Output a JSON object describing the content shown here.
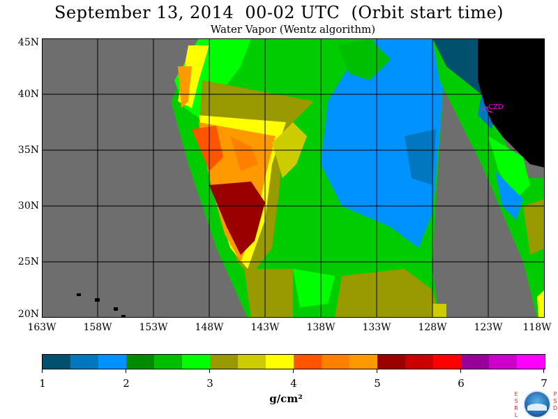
{
  "header": {
    "title": "September 13, 2014  00-02 UTC  (Orbit start time)",
    "subtitle": "Water Vapor (Wentz algorithm)"
  },
  "map": {
    "y_axis_labels": [
      "45N",
      "40N",
      "35N",
      "30N",
      "25N",
      "20N"
    ],
    "x_axis_labels": [
      "163W",
      "158W",
      "153W",
      "148W",
      "143W",
      "138W",
      "133W",
      "128W",
      "123W",
      "118W"
    ],
    "lat_range": [
      20,
      45
    ],
    "lon_range": [
      -163,
      -118
    ],
    "grid": true,
    "annotation": "CZD",
    "colors": {
      "no_data": "#6e6e6e",
      "land": "#000000",
      "grid": "#000000",
      "annotation": "#ff00ff"
    }
  },
  "colorbar": {
    "tick_labels": [
      "1",
      "2",
      "3",
      "4",
      "5",
      "6",
      "7"
    ],
    "range": [
      1,
      7
    ],
    "units": "g/cm²",
    "colors": [
      "#00506e",
      "#0077bf",
      "#0092ff",
      "#008c00",
      "#00be00",
      "#00ff00",
      "#999900",
      "#cccc00",
      "#ffff00",
      "#ff5500",
      "#ff7f00",
      "#ff9900",
      "#990000",
      "#cc0000",
      "#ff0000",
      "#990099",
      "#cc00cc",
      "#ff00ff"
    ]
  },
  "logo": {
    "left_letters": "ESRL",
    "right_letters": "PSD",
    "emblem": "noaa-emblem"
  }
}
